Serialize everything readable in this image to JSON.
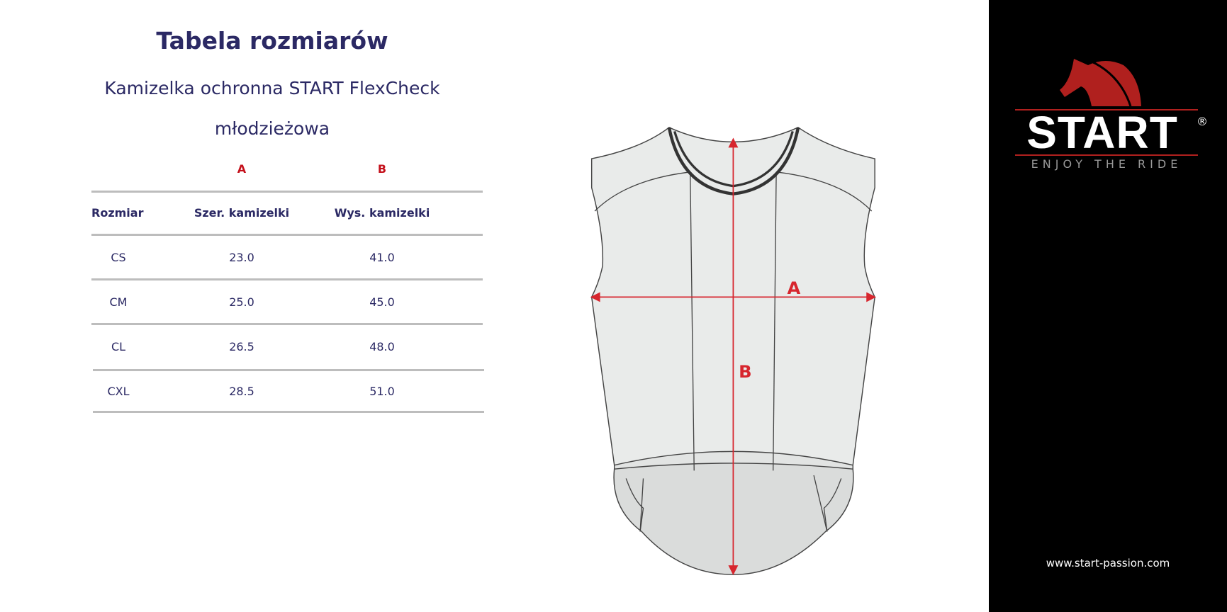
{
  "title": "Tabela rozmiarów",
  "subtitle_line1": "Kamizelka ochronna START FlexCheck",
  "subtitle_line2": "młodzieżowa",
  "table": {
    "markers": [
      "A",
      "B"
    ],
    "headers": [
      "Rozmiar",
      "Szer. kamizelki",
      "Wys. kamizelki"
    ],
    "rows": [
      [
        "CS",
        "23.0",
        "41.0"
      ],
      [
        "CM",
        "25.0",
        "45.0"
      ],
      [
        "CL",
        "26.5",
        "48.0"
      ],
      [
        "CXL",
        "28.5",
        "51.0"
      ]
    ]
  },
  "diagram": {
    "label_a": "A",
    "label_b": "B"
  },
  "brand": {
    "name": "START",
    "registered": "®",
    "tagline": "ENJOY THE RIDE",
    "url": "www.start-passion.com",
    "color": "#b0201e"
  }
}
